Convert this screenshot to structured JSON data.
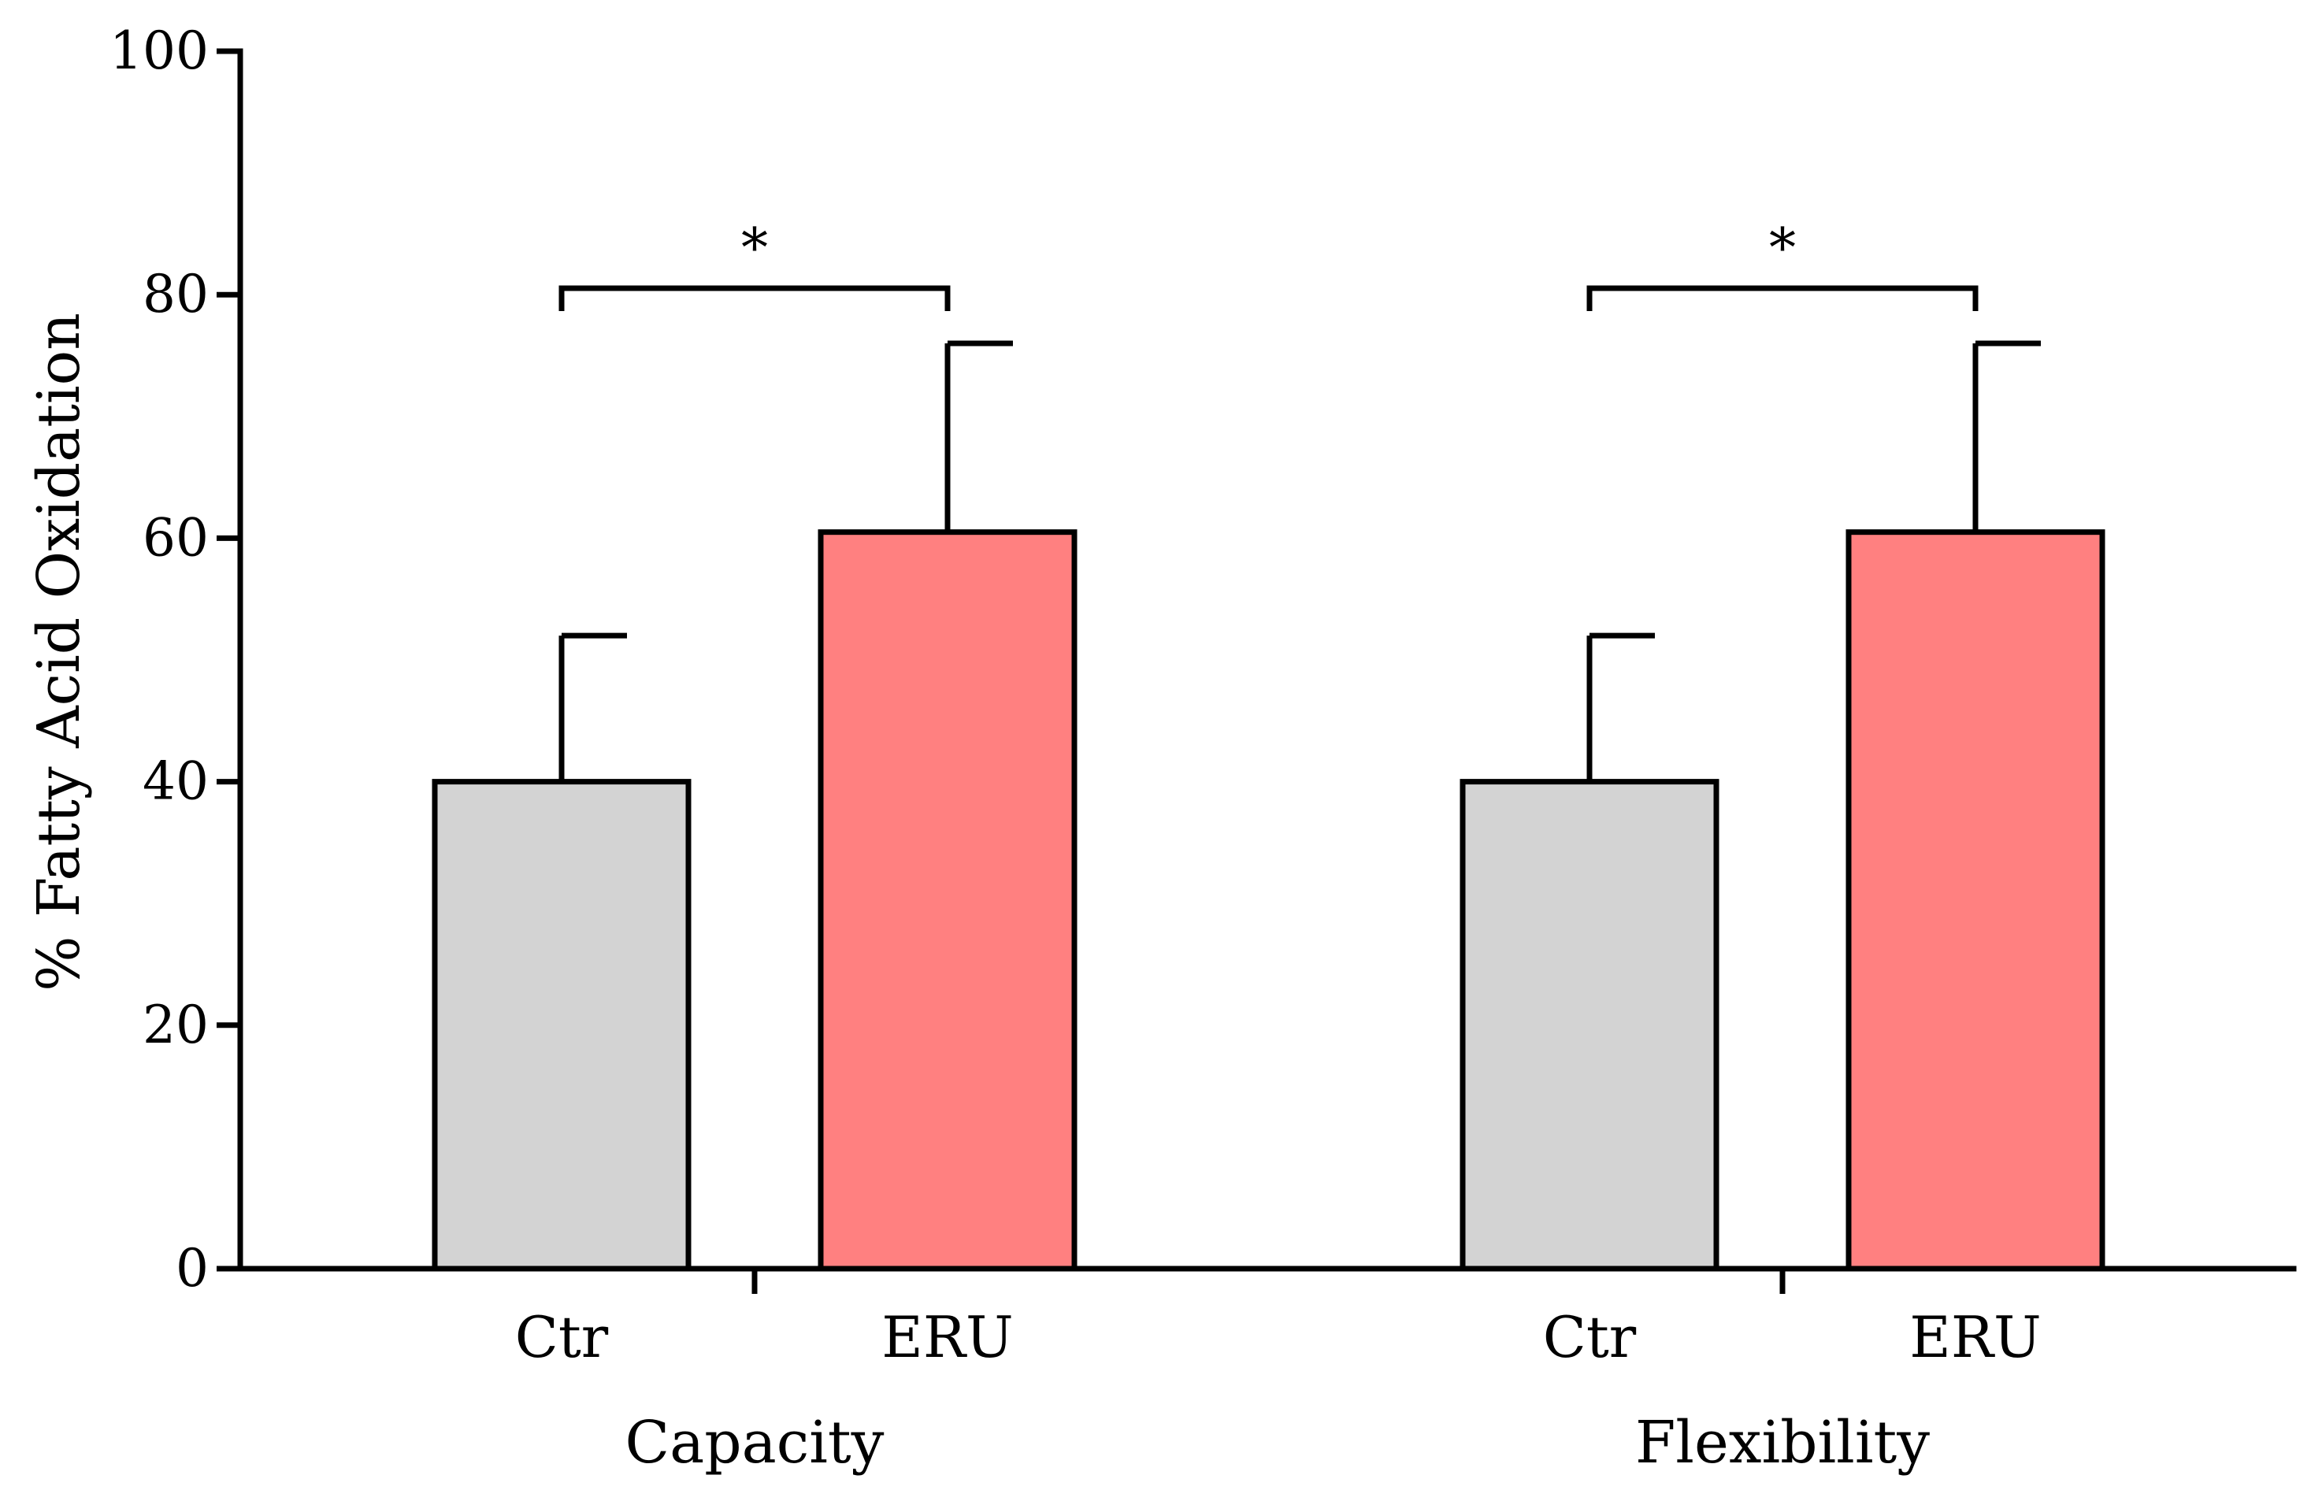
{
  "chart_data": {
    "type": "bar",
    "title": "",
    "xlabel": "",
    "ylabel": "% Fatty Acid Oxidation",
    "ylim": [
      0,
      100
    ],
    "yticks": [
      0,
      20,
      40,
      60,
      80,
      100
    ],
    "grid": false,
    "legend": "none",
    "groups": [
      {
        "label": "Capacity",
        "bars": [
          {
            "category": "Ctr",
            "value": 40,
            "error": 12,
            "color": "#d3d3d3"
          },
          {
            "category": "ERU",
            "value": 60.5,
            "error": 15.5,
            "color": "#ff8080"
          }
        ],
        "significance": "*"
      },
      {
        "label": "Flexibility",
        "bars": [
          {
            "category": "Ctr",
            "value": 40,
            "error": 12,
            "color": "#d3d3d3"
          },
          {
            "category": "ERU",
            "value": 60.5,
            "error": 15.5,
            "color": "#ff8080"
          }
        ],
        "significance": "*"
      }
    ]
  }
}
